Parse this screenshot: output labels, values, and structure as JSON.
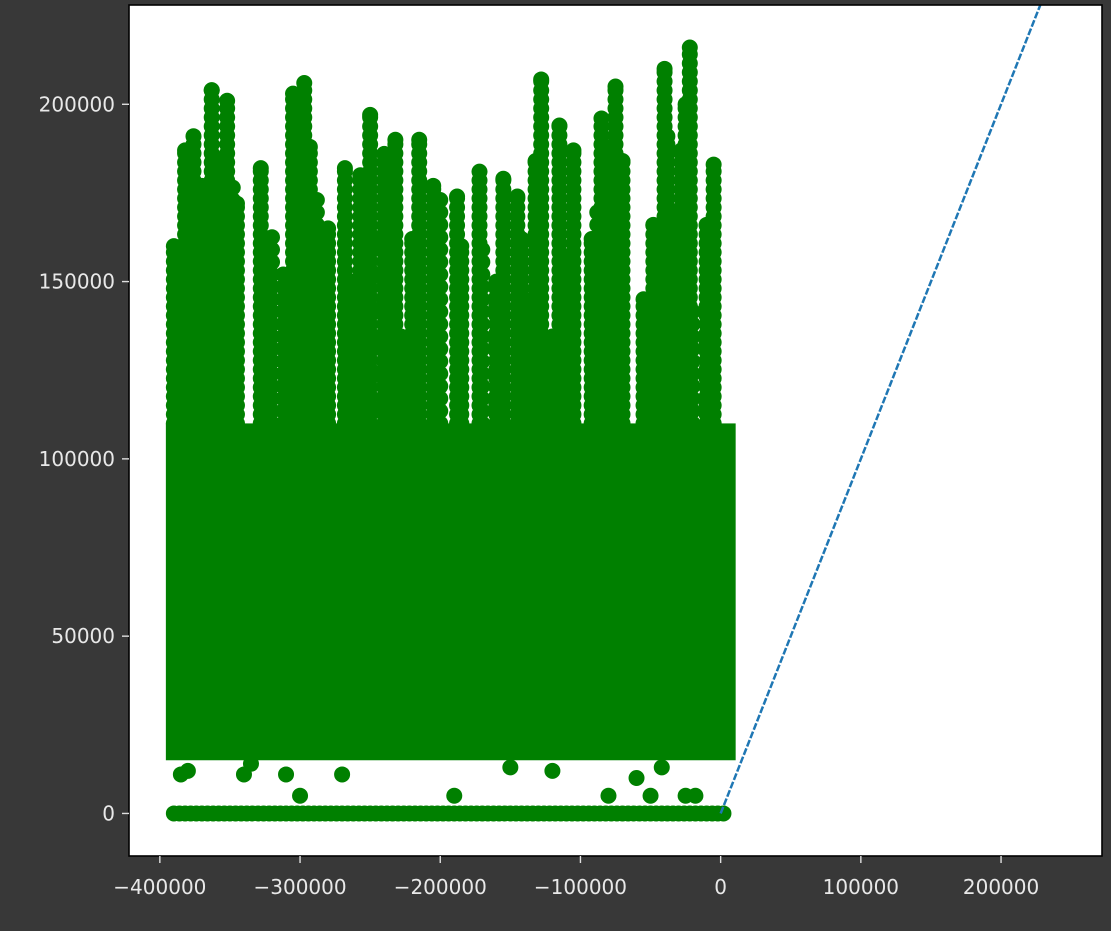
{
  "colors": {
    "background": "#383838",
    "plot_area": "#ffffff",
    "scatter": "#008000",
    "trend_line": "#1f77b4",
    "tick_text": "#e8e8e8"
  },
  "chart_data": {
    "type": "scatter",
    "title": "",
    "xlabel": "",
    "ylabel": "",
    "xlim": [
      -422000,
      272000
    ],
    "ylim": [
      -12000,
      228000
    ],
    "grid": false,
    "x_ticks": [
      -400000,
      -300000,
      -200000,
      -100000,
      0,
      100000,
      200000
    ],
    "x_tick_labels": [
      "−400000",
      "−300000",
      "−200000",
      "−100000",
      "0",
      "100000",
      "200000"
    ],
    "y_ticks": [
      0,
      50000,
      100000,
      150000,
      200000
    ],
    "y_tick_labels": [
      "0",
      "50000",
      "100000",
      "150000",
      "200000"
    ],
    "series": [
      {
        "type": "scatter",
        "marker": "circle",
        "color": "#008000",
        "x_range": [
          -390000,
          5000
        ],
        "dense_band_y": [
          15000,
          110000
        ],
        "zero_row_y": 0,
        "points": [
          [
            -382000,
            187000
          ],
          [
            -376000,
            191000
          ],
          [
            -363000,
            204000
          ],
          [
            -352000,
            201000
          ],
          [
            -370000,
            177000
          ],
          [
            -358000,
            184000
          ],
          [
            -345000,
            172000
          ],
          [
            -328000,
            182000
          ],
          [
            -305000,
            203000
          ],
          [
            -297000,
            206000
          ],
          [
            -301000,
            194000
          ],
          [
            -293000,
            188000
          ],
          [
            -280000,
            165000
          ],
          [
            -268000,
            182000
          ],
          [
            -250000,
            197000
          ],
          [
            -257000,
            180000
          ],
          [
            -232000,
            190000
          ],
          [
            -240000,
            186000
          ],
          [
            -215000,
            190000
          ],
          [
            -205000,
            177000
          ],
          [
            -188000,
            174000
          ],
          [
            -172000,
            181000
          ],
          [
            -155000,
            179000
          ],
          [
            -145000,
            174000
          ],
          [
            -128000,
            207000
          ],
          [
            -115000,
            194000
          ],
          [
            -105000,
            187000
          ],
          [
            -132000,
            184000
          ],
          [
            -85000,
            196000
          ],
          [
            -75000,
            205000
          ],
          [
            -78000,
            188000
          ],
          [
            -70000,
            184000
          ],
          [
            -40000,
            210000
          ],
          [
            -22000,
            216000
          ],
          [
            -25000,
            200000
          ],
          [
            -38000,
            191000
          ],
          [
            -28000,
            187000
          ],
          [
            -5000,
            183000
          ],
          [
            -10000,
            166000
          ],
          [
            -48000,
            166000
          ],
          [
            -390000,
            160000
          ],
          [
            -355000,
            150000
          ],
          [
            -325000,
            162000
          ],
          [
            -290000,
            155000
          ],
          [
            -262000,
            150000
          ],
          [
            -220000,
            162000
          ],
          [
            -185000,
            160000
          ],
          [
            -160000,
            150000
          ],
          [
            -142000,
            162000
          ],
          [
            -110000,
            155000
          ],
          [
            -92000,
            162000
          ],
          [
            -55000,
            145000
          ],
          [
            -380000,
            12000
          ],
          [
            -385000,
            11000
          ],
          [
            -340000,
            11000
          ],
          [
            -335000,
            14000
          ],
          [
            -300000,
            5000
          ],
          [
            -310000,
            11000
          ],
          [
            -270000,
            11000
          ],
          [
            -190000,
            5000
          ],
          [
            -150000,
            13000
          ],
          [
            -120000,
            12000
          ],
          [
            -80000,
            5000
          ],
          [
            -60000,
            10000
          ],
          [
            -42000,
            13000
          ],
          [
            -25000,
            5000
          ],
          [
            -18000,
            5000
          ],
          [
            -50000,
            5000
          ]
        ]
      },
      {
        "type": "line",
        "style": "dashed",
        "color": "#1f77b4",
        "x": [
          0,
          228000
        ],
        "y": [
          0,
          228000
        ]
      }
    ]
  }
}
